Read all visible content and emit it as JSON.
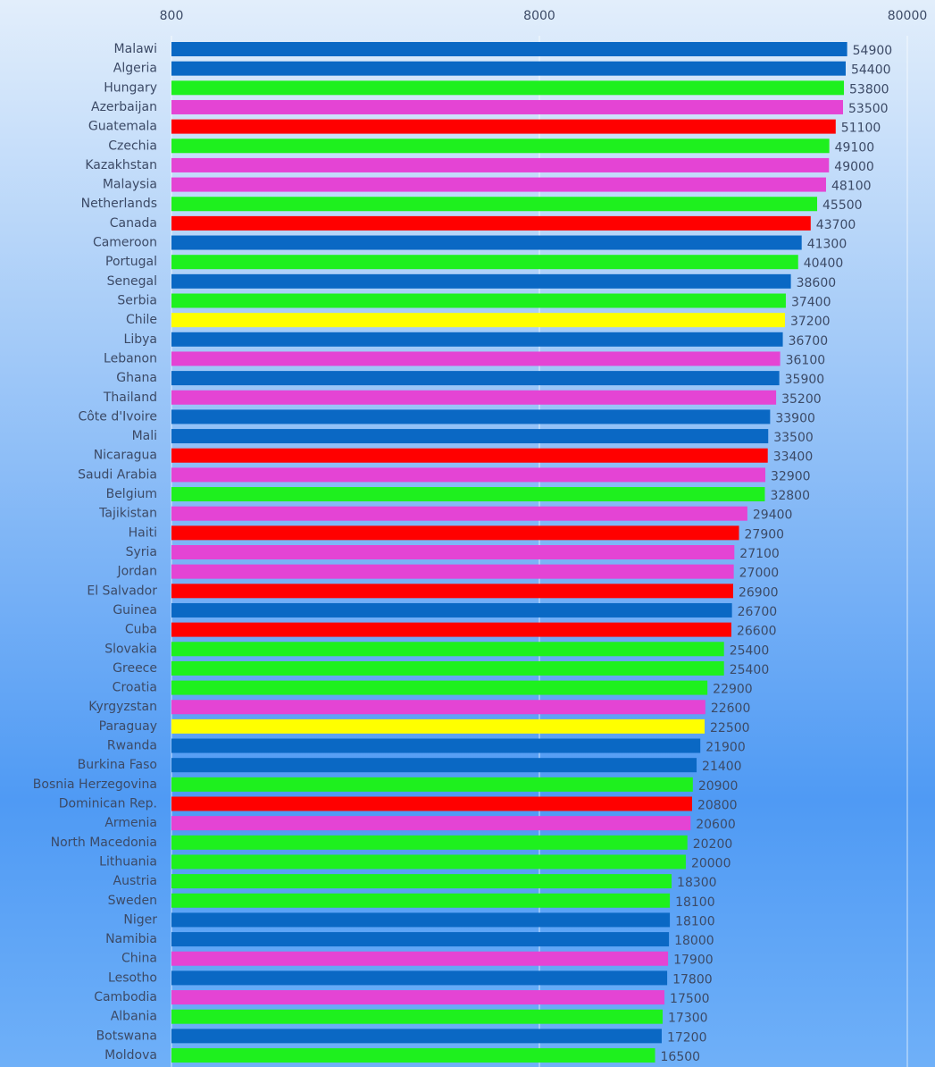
{
  "chart_data": {
    "type": "hbar",
    "log_scale": true,
    "grid": true,
    "xlim": [
      800,
      80000
    ],
    "xticks": [
      800,
      8000,
      80000
    ],
    "categories": [
      "Malawi",
      "Algeria",
      "Hungary",
      "Azerbaijan",
      "Guatemala",
      "Czechia",
      "Kazakhstan",
      "Malaysia",
      "Netherlands",
      "Canada",
      "Cameroon",
      "Portugal",
      "Senegal",
      "Serbia",
      "Chile",
      "Libya",
      "Lebanon",
      "Ghana",
      "Thailand",
      "Côte d'Ivoire",
      "Mali",
      "Nicaragua",
      "Saudi Arabia",
      "Belgium",
      "Tajikistan",
      "Haiti",
      "Syria",
      "Jordan",
      "El Salvador",
      "Guinea",
      "Cuba",
      "Slovakia",
      "Greece",
      "Croatia",
      "Kyrgyzstan",
      "Paraguay",
      "Rwanda",
      "Burkina Faso",
      "Bosnia Herzegovina",
      "Dominican Rep.",
      "Armenia",
      "North Macedonia",
      "Lithuania",
      "Austria",
      "Sweden",
      "Niger",
      "Namibia",
      "China",
      "Lesotho",
      "Cambodia",
      "Albania",
      "Botswana",
      "Moldova"
    ],
    "values": [
      54900,
      54400,
      53800,
      53500,
      51100,
      49100,
      49000,
      48100,
      45500,
      43700,
      41300,
      40400,
      38600,
      37400,
      37200,
      36700,
      36100,
      35900,
      35200,
      33900,
      33500,
      33400,
      32900,
      32800,
      29400,
      27900,
      27100,
      27000,
      26900,
      26700,
      26600,
      25400,
      25400,
      22900,
      22600,
      22500,
      21900,
      21400,
      20900,
      20800,
      20600,
      20200,
      20000,
      18300,
      18100,
      18100,
      18000,
      17900,
      17800,
      17500,
      17300,
      17200,
      16500
    ],
    "colors": [
      "#0a68c4",
      "#0a68c4",
      "#1ef01e",
      "#e444d4",
      "#ff0000",
      "#1ef01e",
      "#e444d4",
      "#e444d4",
      "#1ef01e",
      "#ff0000",
      "#0a68c4",
      "#1ef01e",
      "#0a68c4",
      "#1ef01e",
      "#ffff00",
      "#0a68c4",
      "#e444d4",
      "#0a68c4",
      "#e444d4",
      "#0a68c4",
      "#0a68c4",
      "#ff0000",
      "#e444d4",
      "#1ef01e",
      "#e444d4",
      "#ff0000",
      "#e444d4",
      "#e444d4",
      "#ff0000",
      "#0a68c4",
      "#ff0000",
      "#1ef01e",
      "#1ef01e",
      "#1ef01e",
      "#e444d4",
      "#ffff00",
      "#0a68c4",
      "#0a68c4",
      "#1ef01e",
      "#ff0000",
      "#e444d4",
      "#1ef01e",
      "#1ef01e",
      "#1ef01e",
      "#1ef01e",
      "#0a68c4",
      "#0a68c4",
      "#e444d4",
      "#0a68c4",
      "#e444d4",
      "#1ef01e",
      "#0a68c4",
      "#1ef01e"
    ]
  }
}
